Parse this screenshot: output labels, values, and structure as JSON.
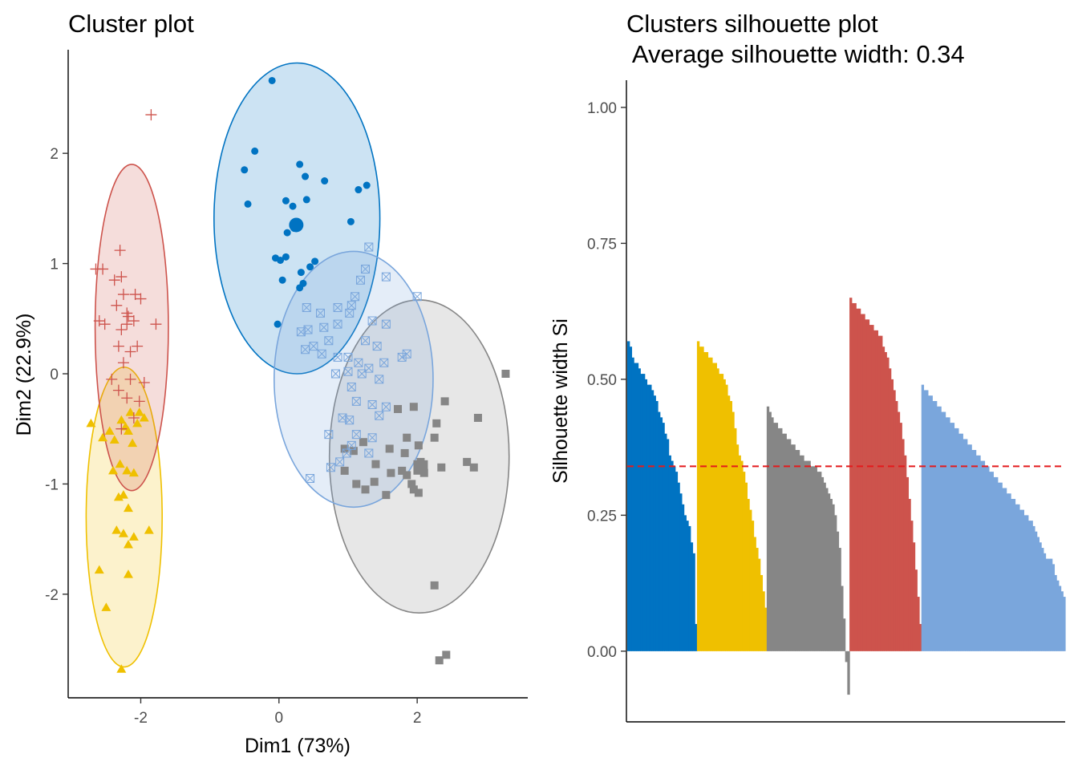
{
  "chart_data": [
    {
      "type": "scatter",
      "title": "Cluster plot",
      "xlabel": "Dim1 (73%)",
      "ylabel": "Dim2 (22.9%)",
      "xlim": [
        -3.05,
        3.6
      ],
      "ylim": [
        -2.94,
        2.94
      ],
      "x_ticks": [
        -2,
        0,
        2
      ],
      "x_tick_labels": [
        "-2",
        "0",
        "2"
      ],
      "y_ticks": [
        -2,
        -1,
        0,
        1,
        2
      ],
      "y_tick_labels": [
        "-2",
        "-1",
        "0",
        "1",
        "2"
      ],
      "grid": false,
      "legend": "none",
      "series": [
        {
          "color": "#0073C2",
          "shape": "circle",
          "ellipse": {
            "cx": 0.26,
            "cy": 1.41,
            "rx": 1.2,
            "ry": 1.41
          },
          "center": [
            0.25,
            1.35
          ],
          "points": [
            [
              -0.1,
              2.66
            ],
            [
              0.3,
              1.9
            ],
            [
              -0.35,
              2.02
            ],
            [
              -0.5,
              1.85
            ],
            [
              -0.45,
              1.54
            ],
            [
              0.1,
              1.57
            ],
            [
              0.2,
              1.52
            ],
            [
              0.4,
              1.58
            ],
            [
              0.66,
              1.75
            ],
            [
              0.38,
              1.79
            ],
            [
              1.15,
              1.67
            ],
            [
              1.27,
              1.71
            ],
            [
              0.25,
              1.34
            ],
            [
              0.22,
              1.32
            ],
            [
              0.12,
              1.28
            ],
            [
              0.1,
              1.06
            ],
            [
              -0.05,
              1.05
            ],
            [
              0.02,
              1.03
            ],
            [
              0.35,
              0.82
            ],
            [
              0.32,
              0.92
            ],
            [
              0.45,
              0.97
            ],
            [
              0.3,
              0.78
            ],
            [
              0.05,
              0.85
            ],
            [
              -0.02,
              0.45
            ],
            [
              1.04,
              1.38
            ],
            [
              0.52,
              1.02
            ]
          ]
        },
        {
          "color": "#EFC000",
          "shape": "triangle",
          "ellipse": {
            "cx": -2.24,
            "cy": -1.3,
            "rx": 0.55,
            "ry": 1.36
          },
          "points": [
            [
              -2.72,
              -0.45
            ],
            [
              -2.55,
              -0.58
            ],
            [
              -2.45,
              -0.52
            ],
            [
              -2.38,
              -0.6
            ],
            [
              -2.28,
              -0.42
            ],
            [
              -2.22,
              -0.48
            ],
            [
              -2.18,
              -0.52
            ],
            [
              -2.12,
              -0.63
            ],
            [
              -2.05,
              -0.45
            ],
            [
              -1.95,
              -0.4
            ],
            [
              -2.02,
              -0.35
            ],
            [
              -2.15,
              -0.35
            ],
            [
              -2.4,
              -0.88
            ],
            [
              -2.3,
              -0.82
            ],
            [
              -2.2,
              -0.88
            ],
            [
              -2.1,
              -0.9
            ],
            [
              -2.32,
              -1.12
            ],
            [
              -2.25,
              -1.1
            ],
            [
              -2.18,
              -1.22
            ],
            [
              -2.35,
              -1.42
            ],
            [
              -2.25,
              -1.45
            ],
            [
              -2.1,
              -1.48
            ],
            [
              -2.18,
              -1.55
            ],
            [
              -1.88,
              -1.42
            ],
            [
              -2.6,
              -1.78
            ],
            [
              -2.18,
              -1.82
            ],
            [
              -2.5,
              -2.12
            ],
            [
              -2.28,
              -2.68
            ]
          ]
        },
        {
          "color": "#868686",
          "shape": "square",
          "ellipse": {
            "cx": 2.03,
            "cy": -0.75,
            "rx": 1.3,
            "ry": 1.42
          },
          "center": [
            2.05,
            -0.85
          ],
          "points": [
            [
              3.28,
              0.0
            ],
            [
              2.4,
              -0.25
            ],
            [
              2.88,
              -0.4
            ],
            [
              2.28,
              -0.45
            ],
            [
              1.72,
              -0.32
            ],
            [
              1.95,
              -0.3
            ],
            [
              2.25,
              -0.58
            ],
            [
              1.85,
              -0.58
            ],
            [
              2.02,
              -0.65
            ],
            [
              1.82,
              -0.72
            ],
            [
              1.6,
              -0.68
            ],
            [
              1.22,
              -0.62
            ],
            [
              0.95,
              -0.68
            ],
            [
              1.08,
              -0.7
            ],
            [
              2.05,
              -0.8
            ],
            [
              2.1,
              -0.9
            ],
            [
              1.85,
              -0.92
            ],
            [
              1.92,
              -1.0
            ],
            [
              1.78,
              -0.88
            ],
            [
              2.72,
              -0.8
            ],
            [
              2.82,
              -0.85
            ],
            [
              2.35,
              -0.85
            ],
            [
              1.62,
              -0.9
            ],
            [
              1.38,
              -0.98
            ],
            [
              1.12,
              -1.0
            ],
            [
              1.25,
              -1.05
            ],
            [
              1.55,
              -1.1
            ],
            [
              1.95,
              -1.05
            ],
            [
              2.02,
              -1.08
            ],
            [
              1.4,
              -0.82
            ],
            [
              0.95,
              -0.88
            ],
            [
              2.25,
              -1.92
            ],
            [
              2.32,
              -2.6
            ],
            [
              2.42,
              -2.55
            ]
          ]
        },
        {
          "color": "#CD534C",
          "shape": "plus",
          "ellipse": {
            "cx": -2.13,
            "cy": 0.42,
            "rx": 0.53,
            "ry": 1.48
          },
          "points": [
            [
              -1.85,
              2.35
            ],
            [
              -2.3,
              1.12
            ],
            [
              -2.65,
              0.95
            ],
            [
              -2.55,
              0.95
            ],
            [
              -2.38,
              0.85
            ],
            [
              -2.28,
              0.88
            ],
            [
              -2.25,
              0.72
            ],
            [
              -2.35,
              0.62
            ],
            [
              -2.2,
              0.55
            ],
            [
              -2.08,
              0.72
            ],
            [
              -2.0,
              0.68
            ],
            [
              -2.2,
              0.45
            ],
            [
              -2.18,
              0.52
            ],
            [
              -2.1,
              0.48
            ],
            [
              -2.28,
              0.4
            ],
            [
              -2.6,
              0.48
            ],
            [
              -2.52,
              0.45
            ],
            [
              -2.32,
              0.25
            ],
            [
              -2.15,
              0.2
            ],
            [
              -2.05,
              0.25
            ],
            [
              -2.25,
              0.1
            ],
            [
              -2.42,
              -0.05
            ],
            [
              -2.15,
              -0.05
            ],
            [
              -2.32,
              -0.15
            ],
            [
              -2.2,
              -0.22
            ],
            [
              -2.02,
              -0.25
            ],
            [
              -1.95,
              -0.08
            ],
            [
              -2.1,
              -0.4
            ],
            [
              -2.28,
              -0.5
            ],
            [
              -1.78,
              0.45
            ]
          ]
        },
        {
          "color": "#7AA6DC",
          "shape": "square-cross",
          "ellipse": {
            "cx": 1.08,
            "cy": -0.05,
            "rx": 1.15,
            "ry": 1.16
          },
          "points": [
            [
              1.3,
              1.15
            ],
            [
              1.25,
              0.95
            ],
            [
              1.18,
              0.85
            ],
            [
              1.55,
              0.88
            ],
            [
              2.0,
              0.7
            ],
            [
              1.1,
              0.7
            ],
            [
              1.05,
              0.62
            ],
            [
              1.02,
              0.55
            ],
            [
              0.4,
              0.6
            ],
            [
              0.6,
              0.55
            ],
            [
              0.85,
              0.6
            ],
            [
              1.35,
              0.48
            ],
            [
              1.55,
              0.45
            ],
            [
              0.65,
              0.42
            ],
            [
              0.85,
              0.45
            ],
            [
              0.42,
              0.4
            ],
            [
              0.32,
              0.38
            ],
            [
              0.72,
              0.3
            ],
            [
              1.25,
              0.3
            ],
            [
              1.42,
              0.25
            ],
            [
              1.52,
              0.1
            ],
            [
              0.38,
              0.22
            ],
            [
              0.62,
              0.18
            ],
            [
              0.85,
              0.15
            ],
            [
              1.0,
              0.15
            ],
            [
              1.15,
              0.1
            ],
            [
              1.3,
              0.05
            ],
            [
              1.85,
              0.18
            ],
            [
              1.78,
              0.15
            ],
            [
              0.5,
              0.25
            ],
            [
              0.82,
              0.0
            ],
            [
              1.0,
              0.02
            ],
            [
              1.2,
              0.0
            ],
            [
              1.45,
              -0.05
            ],
            [
              1.05,
              -0.12
            ],
            [
              1.12,
              -0.25
            ],
            [
              1.35,
              -0.28
            ],
            [
              1.55,
              -0.3
            ],
            [
              1.45,
              -0.38
            ],
            [
              0.92,
              -0.4
            ],
            [
              1.02,
              -0.42
            ],
            [
              0.72,
              -0.55
            ],
            [
              1.12,
              -0.55
            ],
            [
              1.35,
              -0.58
            ],
            [
              1.05,
              -0.65
            ],
            [
              0.98,
              -0.72
            ],
            [
              1.3,
              -0.72
            ],
            [
              0.88,
              -0.8
            ],
            [
              0.75,
              -0.85
            ],
            [
              0.45,
              -0.95
            ]
          ]
        }
      ]
    },
    {
      "type": "bar",
      "title": "Clusters silhouette plot",
      "subtitle": " Average silhouette width: 0.34",
      "ylabel": "Silhouette width Si",
      "xlabel": "",
      "ylim": [
        -0.13,
        1.05
      ],
      "y_ticks": [
        0,
        0.25,
        0.5,
        0.75,
        1.0
      ],
      "y_tick_labels": [
        "0.00",
        "0.25",
        "0.50",
        "0.75",
        "1.00"
      ],
      "average_line": 0.34,
      "average_line_color": "#E41A1C",
      "grid": false,
      "legend": "none",
      "series": [
        {
          "color": "#0073C2",
          "values": [
            0.57,
            0.56,
            0.54,
            0.53,
            0.53,
            0.52,
            0.51,
            0.51,
            0.5,
            0.49,
            0.49,
            0.48,
            0.47,
            0.46,
            0.44,
            0.43,
            0.42,
            0.4,
            0.39,
            0.36,
            0.35,
            0.34,
            0.33,
            0.31,
            0.29,
            0.27,
            0.25,
            0.24,
            0.23,
            0.2,
            0.18,
            0.05
          ]
        },
        {
          "color": "#EFC000",
          "values": [
            0.57,
            0.56,
            0.56,
            0.55,
            0.55,
            0.54,
            0.54,
            0.53,
            0.53,
            0.52,
            0.51,
            0.51,
            0.5,
            0.49,
            0.47,
            0.46,
            0.44,
            0.41,
            0.38,
            0.36,
            0.35,
            0.33,
            0.31,
            0.28,
            0.26,
            0.24,
            0.21,
            0.19,
            0.17,
            0.14,
            0.11,
            0.08
          ]
        },
        {
          "color": "#868686",
          "values": [
            0.45,
            0.44,
            0.43,
            0.42,
            0.42,
            0.41,
            0.41,
            0.4,
            0.4,
            0.39,
            0.39,
            0.38,
            0.38,
            0.37,
            0.37,
            0.36,
            0.36,
            0.35,
            0.35,
            0.35,
            0.34,
            0.34,
            0.34,
            0.33,
            0.33,
            0.32,
            0.31,
            0.3,
            0.29,
            0.28,
            0.27,
            0.25,
            0.22,
            0.19,
            0.12,
            0.06,
            -0.02,
            -0.08
          ]
        },
        {
          "color": "#CD534C",
          "values": [
            0.65,
            0.64,
            0.64,
            0.63,
            0.63,
            0.62,
            0.62,
            0.61,
            0.61,
            0.6,
            0.6,
            0.59,
            0.59,
            0.58,
            0.58,
            0.56,
            0.55,
            0.54,
            0.52,
            0.5,
            0.48,
            0.46,
            0.44,
            0.42,
            0.39,
            0.36,
            0.32,
            0.28,
            0.24,
            0.2,
            0.15,
            0.1,
            0.05
          ]
        },
        {
          "color": "#7AA6DC",
          "values": [
            0.49,
            0.48,
            0.48,
            0.47,
            0.47,
            0.46,
            0.46,
            0.45,
            0.45,
            0.44,
            0.44,
            0.43,
            0.43,
            0.42,
            0.42,
            0.41,
            0.41,
            0.4,
            0.4,
            0.39,
            0.39,
            0.38,
            0.38,
            0.37,
            0.37,
            0.36,
            0.36,
            0.35,
            0.35,
            0.34,
            0.34,
            0.33,
            0.33,
            0.32,
            0.32,
            0.31,
            0.31,
            0.3,
            0.3,
            0.29,
            0.29,
            0.28,
            0.28,
            0.27,
            0.27,
            0.26,
            0.26,
            0.25,
            0.25,
            0.24,
            0.24,
            0.23,
            0.22,
            0.21,
            0.2,
            0.19,
            0.18,
            0.17,
            0.17,
            0.17,
            0.16,
            0.14,
            0.13,
            0.12,
            0.11,
            0.1
          ]
        }
      ]
    }
  ]
}
